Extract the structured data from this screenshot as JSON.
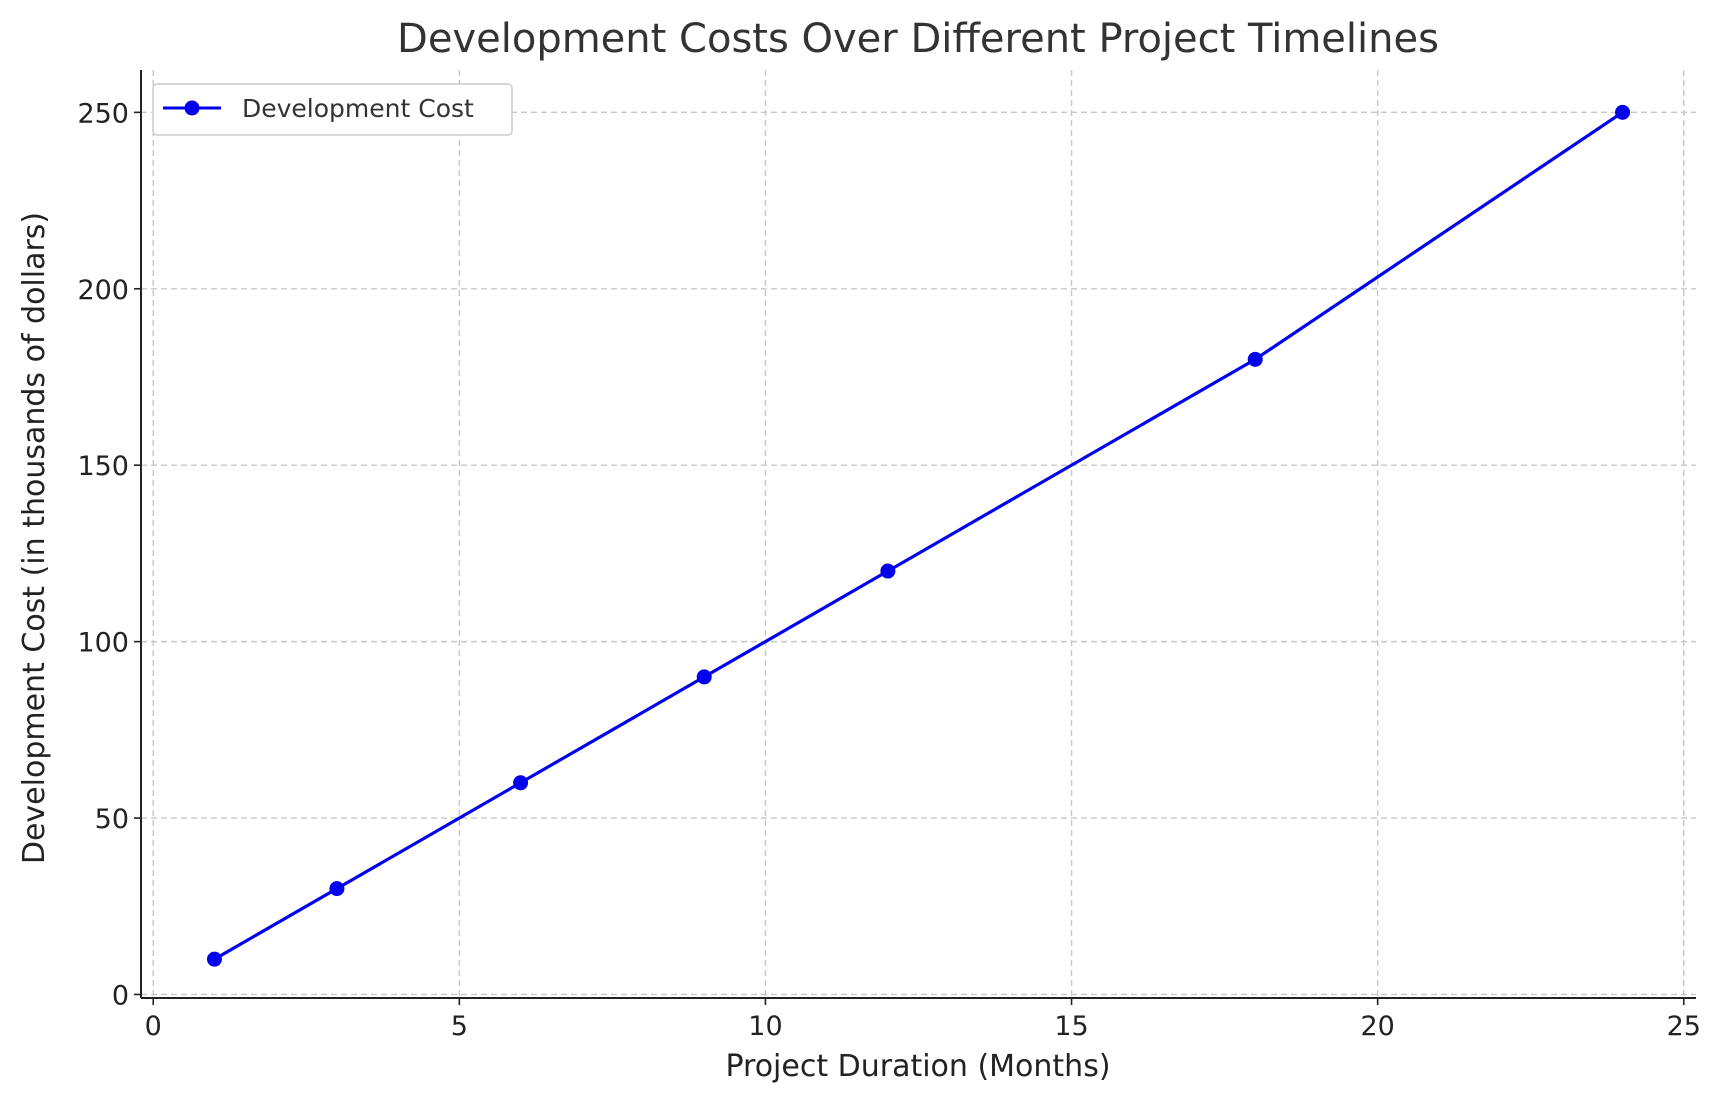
{
  "chart_data": {
    "type": "line",
    "title": "Development Costs Over Different Project Timelines",
    "xlabel": "Project Duration (Months)",
    "ylabel": "Development Cost (in thousands of dollars)",
    "xlim": [
      -0.2,
      25.2
    ],
    "ylim": [
      -1,
      262
    ],
    "x_ticks": [
      0,
      5,
      10,
      15,
      20,
      25
    ],
    "y_ticks": [
      0,
      50,
      100,
      150,
      200,
      250
    ],
    "grid": true,
    "legend_position": "top-left",
    "series": [
      {
        "name": "Development Cost",
        "color": "#0000ee",
        "marker": "circle",
        "x": [
          1,
          3,
          6,
          9,
          12,
          18,
          24
        ],
        "y": [
          10,
          30,
          60,
          90,
          120,
          180,
          250
        ]
      }
    ]
  }
}
